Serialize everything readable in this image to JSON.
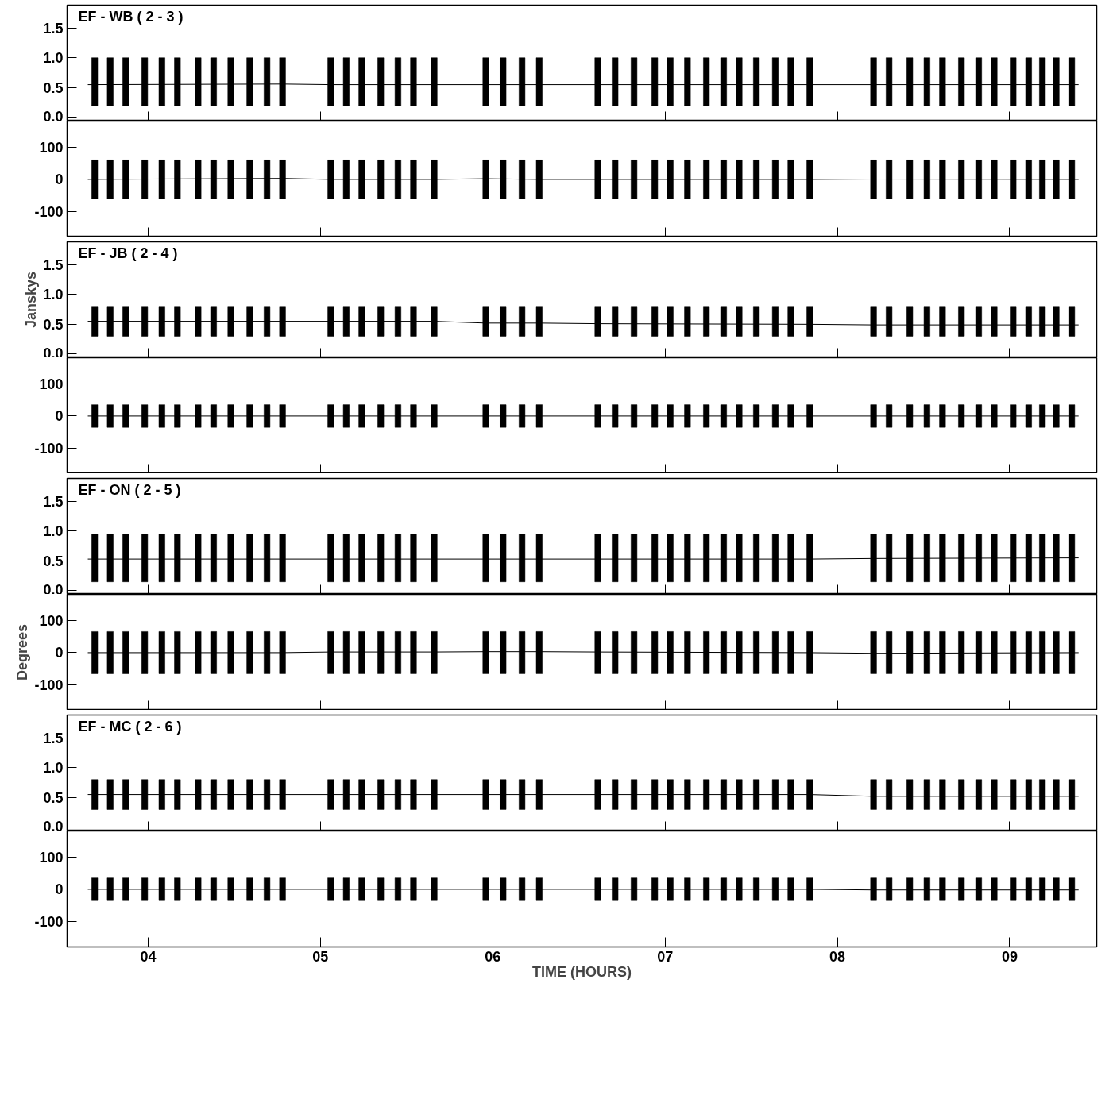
{
  "chart_data": [
    {
      "type": "bar",
      "title": "EF - WB ( 2 - 3 )",
      "x": [
        3.69,
        3.78,
        3.87,
        3.98,
        4.08,
        4.17,
        4.29,
        4.38,
        4.48,
        4.59,
        4.69,
        4.78,
        5.06,
        5.15,
        5.24,
        5.35,
        5.45,
        5.54,
        5.66,
        5.96,
        6.06,
        6.17,
        6.27,
        6.61,
        6.71,
        6.82,
        6.94,
        7.03,
        7.13,
        7.24,
        7.34,
        7.43,
        7.53,
        7.64,
        7.73,
        7.84,
        8.21,
        8.3,
        8.42,
        8.52,
        8.61,
        8.72,
        8.82,
        8.91,
        9.02,
        9.11,
        9.19,
        9.27,
        9.36
      ],
      "xlim": [
        3.53,
        9.505
      ],
      "xticks": [
        {
          "value": 4,
          "label": null
        },
        {
          "value": 5,
          "label": null
        },
        {
          "value": 6,
          "label": null
        },
        {
          "value": 7,
          "label": null
        },
        {
          "value": 8,
          "label": null
        },
        {
          "value": 9,
          "label": null
        }
      ],
      "ylim": [
        -0.06,
        1.88
      ],
      "yticks": [
        {
          "value": 0,
          "label": "0.0"
        },
        {
          "value": 0.5,
          "label": "0.5"
        },
        {
          "value": 1,
          "label": "1.0"
        },
        {
          "value": 1.5,
          "label": "1.5"
        }
      ],
      "tick_labels": "y",
      "grid": false,
      "series": [
        {
          "type": "bar",
          "color": "#000000",
          "base": [
            0.2,
            0.2,
            0.2,
            0.2,
            0.2,
            0.2,
            0.2,
            0.2,
            0.2,
            0.2,
            0.2,
            0.2,
            0.2,
            0.2,
            0.2,
            0.2,
            0.2,
            0.2,
            0.2,
            0.2,
            0.2,
            0.2,
            0.2,
            0.2,
            0.2,
            0.2,
            0.2,
            0.2,
            0.2,
            0.2,
            0.2,
            0.2,
            0.2,
            0.2,
            0.2,
            0.2,
            0.2,
            0.2,
            0.2,
            0.2,
            0.2,
            0.2,
            0.2,
            0.2,
            0.2,
            0.2,
            0.2,
            0.2,
            0.2
          ],
          "values": [
            0.8,
            0.8,
            0.8,
            0.8,
            0.8,
            0.8,
            0.8,
            0.8,
            0.8,
            0.8,
            0.8,
            0.8,
            0.8,
            0.8,
            0.8,
            0.8,
            0.8,
            0.8,
            0.8,
            0.8,
            0.8,
            0.8,
            0.8,
            0.8,
            0.8,
            0.8,
            0.8,
            0.8,
            0.8,
            0.8,
            0.8,
            0.8,
            0.8,
            0.8,
            0.8,
            0.8,
            0.8,
            0.8,
            0.8,
            0.8,
            0.8,
            0.8,
            0.8,
            0.8,
            0.8,
            0.8,
            0.8,
            0.8,
            0.8
          ]
        },
        {
          "type": "line",
          "color": "#000000",
          "x": [
            3.65,
            4.78,
            5.06,
            5.66,
            5.96,
            6.27,
            6.61,
            7.84,
            8.21,
            9.4
          ],
          "values": [
            0.55,
            0.56,
            0.55,
            0.55,
            0.55,
            0.55,
            0.55,
            0.55,
            0.55,
            0.55
          ]
        }
      ]
    },
    {
      "type": "bar",
      "x": [
        3.69,
        3.78,
        3.87,
        3.98,
        4.08,
        4.17,
        4.29,
        4.38,
        4.48,
        4.59,
        4.69,
        4.78,
        5.06,
        5.15,
        5.24,
        5.35,
        5.45,
        5.54,
        5.66,
        5.96,
        6.06,
        6.17,
        6.27,
        6.61,
        6.71,
        6.82,
        6.94,
        7.03,
        7.13,
        7.24,
        7.34,
        7.43,
        7.53,
        7.64,
        7.73,
        7.84,
        8.21,
        8.3,
        8.42,
        8.52,
        8.61,
        8.72,
        8.82,
        8.91,
        9.02,
        9.11,
        9.19,
        9.27,
        9.36
      ],
      "xlim": [
        3.53,
        9.505
      ],
      "xticks": [
        {
          "value": 4,
          "label": null
        },
        {
          "value": 5,
          "label": null
        },
        {
          "value": 6,
          "label": null
        },
        {
          "value": 7,
          "label": null
        },
        {
          "value": 8,
          "label": null
        },
        {
          "value": 9,
          "label": null
        }
      ],
      "ylim": [
        -178,
        180
      ],
      "yticks": [
        -100,
        0,
        100
      ],
      "tick_labels": "y",
      "grid": false,
      "series": [
        {
          "type": "bar",
          "color": "#000000",
          "base": [
            -60,
            -60,
            -60,
            -60,
            -60,
            -60,
            -60,
            -60,
            -60,
            -60,
            -60,
            -60,
            -60,
            -60,
            -60,
            -60,
            -60,
            -60,
            -60,
            -60,
            -60,
            -60,
            -60,
            -60,
            -60,
            -60,
            -60,
            -60,
            -60,
            -60,
            -60,
            -60,
            -60,
            -60,
            -60,
            -60,
            -60,
            -60,
            -60,
            -60,
            -60,
            -60,
            -60,
            -60,
            -60,
            -60,
            -60,
            -60,
            -60
          ],
          "values": [
            120,
            120,
            120,
            120,
            120,
            120,
            120,
            120,
            120,
            120,
            120,
            120,
            120,
            120,
            120,
            120,
            120,
            120,
            120,
            120,
            120,
            120,
            120,
            120,
            120,
            120,
            120,
            120,
            120,
            120,
            120,
            120,
            120,
            120,
            120,
            120,
            120,
            120,
            120,
            120,
            120,
            120,
            120,
            120,
            120,
            120,
            120,
            120,
            120
          ]
        },
        {
          "type": "line",
          "color": "#000000",
          "x": [
            3.65,
            4.78,
            5.06,
            5.66,
            5.96,
            6.27,
            6.61,
            7.84,
            8.21,
            9.4
          ],
          "values": [
            0,
            3,
            0,
            0,
            2,
            0,
            0,
            0,
            1,
            0
          ]
        }
      ]
    },
    {
      "type": "bar",
      "title": "EF - JB ( 2 - 4 )",
      "ylabel": "Janskys",
      "x": [
        3.69,
        3.78,
        3.87,
        3.98,
        4.08,
        4.17,
        4.29,
        4.38,
        4.48,
        4.59,
        4.69,
        4.78,
        5.06,
        5.15,
        5.24,
        5.35,
        5.45,
        5.54,
        5.66,
        5.96,
        6.06,
        6.17,
        6.27,
        6.61,
        6.71,
        6.82,
        6.94,
        7.03,
        7.13,
        7.24,
        7.34,
        7.43,
        7.53,
        7.64,
        7.73,
        7.84,
        8.21,
        8.3,
        8.42,
        8.52,
        8.61,
        8.72,
        8.82,
        8.91,
        9.02,
        9.11,
        9.19,
        9.27,
        9.36
      ],
      "xlim": [
        3.53,
        9.505
      ],
      "xticks": [
        {
          "value": 4,
          "label": null
        },
        {
          "value": 5,
          "label": null
        },
        {
          "value": 6,
          "label": null
        },
        {
          "value": 7,
          "label": null
        },
        {
          "value": 8,
          "label": null
        },
        {
          "value": 9,
          "label": null
        }
      ],
      "ylim": [
        -0.06,
        1.88
      ],
      "yticks": [
        {
          "value": 0,
          "label": "0.0"
        },
        {
          "value": 0.5,
          "label": "0.5"
        },
        {
          "value": 1,
          "label": "1.0"
        },
        {
          "value": 1.5,
          "label": "1.5"
        }
      ],
      "tick_labels": "y",
      "grid": false,
      "series": [
        {
          "type": "bar",
          "color": "#000000",
          "base": [
            0.3,
            0.3,
            0.3,
            0.3,
            0.3,
            0.3,
            0.3,
            0.3,
            0.3,
            0.3,
            0.3,
            0.3,
            0.3,
            0.3,
            0.3,
            0.3,
            0.3,
            0.3,
            0.3,
            0.3,
            0.3,
            0.3,
            0.3,
            0.3,
            0.3,
            0.3,
            0.3,
            0.3,
            0.3,
            0.3,
            0.3,
            0.3,
            0.3,
            0.3,
            0.3,
            0.3,
            0.3,
            0.3,
            0.3,
            0.3,
            0.3,
            0.3,
            0.3,
            0.3,
            0.3,
            0.3,
            0.3,
            0.3,
            0.3
          ],
          "values": [
            0.5,
            0.5,
            0.5,
            0.5,
            0.5,
            0.5,
            0.5,
            0.5,
            0.5,
            0.5,
            0.5,
            0.5,
            0.5,
            0.5,
            0.5,
            0.5,
            0.5,
            0.5,
            0.5,
            0.5,
            0.5,
            0.5,
            0.5,
            0.5,
            0.5,
            0.5,
            0.5,
            0.5,
            0.5,
            0.5,
            0.5,
            0.5,
            0.5,
            0.5,
            0.5,
            0.5,
            0.5,
            0.5,
            0.5,
            0.5,
            0.5,
            0.5,
            0.5,
            0.5,
            0.5,
            0.5,
            0.5,
            0.5,
            0.5
          ]
        },
        {
          "type": "line",
          "color": "#000000",
          "x": [
            3.65,
            4.78,
            5.06,
            5.66,
            5.96,
            6.27,
            6.61,
            7.84,
            8.21,
            9.4
          ],
          "values": [
            0.55,
            0.55,
            0.55,
            0.55,
            0.52,
            0.52,
            0.51,
            0.5,
            0.49,
            0.49
          ]
        }
      ]
    },
    {
      "type": "bar",
      "x": [
        3.69,
        3.78,
        3.87,
        3.98,
        4.08,
        4.17,
        4.29,
        4.38,
        4.48,
        4.59,
        4.69,
        4.78,
        5.06,
        5.15,
        5.24,
        5.35,
        5.45,
        5.54,
        5.66,
        5.96,
        6.06,
        6.17,
        6.27,
        6.61,
        6.71,
        6.82,
        6.94,
        7.03,
        7.13,
        7.24,
        7.34,
        7.43,
        7.53,
        7.64,
        7.73,
        7.84,
        8.21,
        8.3,
        8.42,
        8.52,
        8.61,
        8.72,
        8.82,
        8.91,
        9.02,
        9.11,
        9.19,
        9.27,
        9.36
      ],
      "xlim": [
        3.53,
        9.505
      ],
      "xticks": [
        {
          "value": 4,
          "label": null
        },
        {
          "value": 5,
          "label": null
        },
        {
          "value": 6,
          "label": null
        },
        {
          "value": 7,
          "label": null
        },
        {
          "value": 8,
          "label": null
        },
        {
          "value": 9,
          "label": null
        }
      ],
      "ylim": [
        -178,
        180
      ],
      "yticks": [
        -100,
        0,
        100
      ],
      "tick_labels": "y",
      "grid": false,
      "series": [
        {
          "type": "bar",
          "color": "#000000",
          "base": [
            -35,
            -35,
            -35,
            -35,
            -35,
            -35,
            -35,
            -35,
            -35,
            -35,
            -35,
            -35,
            -35,
            -35,
            -35,
            -35,
            -35,
            -35,
            -35,
            -35,
            -35,
            -35,
            -35,
            -35,
            -35,
            -35,
            -35,
            -35,
            -35,
            -35,
            -35,
            -35,
            -35,
            -35,
            -35,
            -35,
            -35,
            -35,
            -35,
            -35,
            -35,
            -35,
            -35,
            -35,
            -35,
            -35,
            -35,
            -35,
            -35
          ],
          "values": [
            70,
            70,
            70,
            70,
            70,
            70,
            70,
            70,
            70,
            70,
            70,
            70,
            70,
            70,
            70,
            70,
            70,
            70,
            70,
            70,
            70,
            70,
            70,
            70,
            70,
            70,
            70,
            70,
            70,
            70,
            70,
            70,
            70,
            70,
            70,
            70,
            70,
            70,
            70,
            70,
            70,
            70,
            70,
            70,
            70,
            70,
            70,
            70,
            70
          ]
        },
        {
          "type": "line",
          "color": "#000000",
          "x": [
            3.65,
            4.78,
            5.06,
            5.66,
            5.96,
            6.27,
            6.61,
            7.84,
            8.21,
            9.4
          ],
          "values": [
            0,
            0,
            0,
            0,
            0,
            0,
            0,
            0,
            0,
            0
          ]
        }
      ]
    },
    {
      "type": "bar",
      "title": "EF - ON ( 2 - 5 )",
      "x": [
        3.69,
        3.78,
        3.87,
        3.98,
        4.08,
        4.17,
        4.29,
        4.38,
        4.48,
        4.59,
        4.69,
        4.78,
        5.06,
        5.15,
        5.24,
        5.35,
        5.45,
        5.54,
        5.66,
        5.96,
        6.06,
        6.17,
        6.27,
        6.61,
        6.71,
        6.82,
        6.94,
        7.03,
        7.13,
        7.24,
        7.34,
        7.43,
        7.53,
        7.64,
        7.73,
        7.84,
        8.21,
        8.3,
        8.42,
        8.52,
        8.61,
        8.72,
        8.82,
        8.91,
        9.02,
        9.11,
        9.19,
        9.27,
        9.36
      ],
      "xlim": [
        3.53,
        9.505
      ],
      "xticks": [
        {
          "value": 4,
          "label": null
        },
        {
          "value": 5,
          "label": null
        },
        {
          "value": 6,
          "label": null
        },
        {
          "value": 7,
          "label": null
        },
        {
          "value": 8,
          "label": null
        },
        {
          "value": 9,
          "label": null
        }
      ],
      "ylim": [
        -0.06,
        1.88
      ],
      "yticks": [
        {
          "value": 0,
          "label": "0.0"
        },
        {
          "value": 0.5,
          "label": "0.5"
        },
        {
          "value": 1,
          "label": "1.0"
        },
        {
          "value": 1.5,
          "label": "1.5"
        }
      ],
      "tick_labels": "y",
      "grid": false,
      "series": [
        {
          "type": "bar",
          "color": "#000000",
          "base": [
            0.15,
            0.15,
            0.15,
            0.15,
            0.15,
            0.15,
            0.15,
            0.15,
            0.15,
            0.15,
            0.15,
            0.15,
            0.15,
            0.15,
            0.15,
            0.15,
            0.15,
            0.15,
            0.15,
            0.15,
            0.15,
            0.15,
            0.15,
            0.15,
            0.15,
            0.15,
            0.15,
            0.15,
            0.15,
            0.15,
            0.15,
            0.15,
            0.15,
            0.15,
            0.15,
            0.15,
            0.15,
            0.15,
            0.15,
            0.15,
            0.15,
            0.15,
            0.15,
            0.15,
            0.15,
            0.15,
            0.15,
            0.15,
            0.15
          ],
          "values": [
            0.8,
            0.8,
            0.8,
            0.8,
            0.8,
            0.8,
            0.8,
            0.8,
            0.8,
            0.8,
            0.8,
            0.8,
            0.8,
            0.8,
            0.8,
            0.8,
            0.8,
            0.8,
            0.8,
            0.8,
            0.8,
            0.8,
            0.8,
            0.8,
            0.8,
            0.8,
            0.8,
            0.8,
            0.8,
            0.8,
            0.8,
            0.8,
            0.8,
            0.8,
            0.8,
            0.8,
            0.8,
            0.8,
            0.8,
            0.8,
            0.8,
            0.8,
            0.8,
            0.8,
            0.8,
            0.8,
            0.8,
            0.8,
            0.8
          ]
        },
        {
          "type": "line",
          "color": "#000000",
          "x": [
            3.65,
            4.78,
            5.06,
            5.66,
            5.96,
            6.27,
            6.61,
            7.84,
            8.21,
            9.4
          ],
          "values": [
            0.53,
            0.53,
            0.53,
            0.53,
            0.53,
            0.53,
            0.53,
            0.53,
            0.54,
            0.55
          ]
        }
      ]
    },
    {
      "type": "bar",
      "ylabel": "Degrees",
      "x": [
        3.69,
        3.78,
        3.87,
        3.98,
        4.08,
        4.17,
        4.29,
        4.38,
        4.48,
        4.59,
        4.69,
        4.78,
        5.06,
        5.15,
        5.24,
        5.35,
        5.45,
        5.54,
        5.66,
        5.96,
        6.06,
        6.17,
        6.27,
        6.61,
        6.71,
        6.82,
        6.94,
        7.03,
        7.13,
        7.24,
        7.34,
        7.43,
        7.53,
        7.64,
        7.73,
        7.84,
        8.21,
        8.3,
        8.42,
        8.52,
        8.61,
        8.72,
        8.82,
        8.91,
        9.02,
        9.11,
        9.19,
        9.27,
        9.36
      ],
      "xlim": [
        3.53,
        9.505
      ],
      "xticks": [
        {
          "value": 4,
          "label": null
        },
        {
          "value": 5,
          "label": null
        },
        {
          "value": 6,
          "label": null
        },
        {
          "value": 7,
          "label": null
        },
        {
          "value": 8,
          "label": null
        },
        {
          "value": 9,
          "label": null
        }
      ],
      "ylim": [
        -178,
        180
      ],
      "yticks": [
        -100,
        0,
        100
      ],
      "tick_labels": "y",
      "grid": false,
      "series": [
        {
          "type": "bar",
          "color": "#000000",
          "base": [
            -65,
            -65,
            -65,
            -65,
            -65,
            -65,
            -65,
            -65,
            -65,
            -65,
            -65,
            -65,
            -65,
            -65,
            -65,
            -65,
            -65,
            -65,
            -65,
            -65,
            -65,
            -65,
            -65,
            -65,
            -65,
            -65,
            -65,
            -65,
            -65,
            -65,
            -65,
            -65,
            -65,
            -65,
            -65,
            -65,
            -65,
            -65,
            -65,
            -65,
            -65,
            -65,
            -65,
            -65,
            -65,
            -65,
            -65,
            -65,
            -65
          ],
          "values": [
            130,
            130,
            130,
            130,
            130,
            130,
            130,
            130,
            130,
            130,
            130,
            130,
            130,
            130,
            130,
            130,
            130,
            130,
            130,
            130,
            130,
            130,
            130,
            130,
            130,
            130,
            130,
            130,
            130,
            130,
            130,
            130,
            130,
            130,
            130,
            130,
            130,
            130,
            130,
            130,
            130,
            130,
            130,
            130,
            130,
            130,
            130,
            130,
            130
          ]
        },
        {
          "type": "line",
          "color": "#000000",
          "x": [
            3.65,
            4.78,
            5.06,
            5.66,
            5.96,
            6.27,
            6.61,
            7.84,
            8.21,
            9.4
          ],
          "values": [
            0,
            0,
            2,
            2,
            3,
            3,
            2,
            0,
            -2,
            0
          ]
        }
      ]
    },
    {
      "type": "bar",
      "title": "EF - MC ( 2 - 6 )",
      "x": [
        3.69,
        3.78,
        3.87,
        3.98,
        4.08,
        4.17,
        4.29,
        4.38,
        4.48,
        4.59,
        4.69,
        4.78,
        5.06,
        5.15,
        5.24,
        5.35,
        5.45,
        5.54,
        5.66,
        5.96,
        6.06,
        6.17,
        6.27,
        6.61,
        6.71,
        6.82,
        6.94,
        7.03,
        7.13,
        7.24,
        7.34,
        7.43,
        7.53,
        7.64,
        7.73,
        7.84,
        8.21,
        8.3,
        8.42,
        8.52,
        8.61,
        8.72,
        8.82,
        8.91,
        9.02,
        9.11,
        9.19,
        9.27,
        9.36
      ],
      "xlim": [
        3.53,
        9.505
      ],
      "xticks": [
        {
          "value": 4,
          "label": null
        },
        {
          "value": 5,
          "label": null
        },
        {
          "value": 6,
          "label": null
        },
        {
          "value": 7,
          "label": null
        },
        {
          "value": 8,
          "label": null
        },
        {
          "value": 9,
          "label": null
        }
      ],
      "ylim": [
        -0.06,
        1.88
      ],
      "yticks": [
        {
          "value": 0,
          "label": "0.0"
        },
        {
          "value": 0.5,
          "label": "0.5"
        },
        {
          "value": 1,
          "label": "1.0"
        },
        {
          "value": 1.5,
          "label": "1.5"
        }
      ],
      "tick_labels": "y",
      "grid": false,
      "series": [
        {
          "type": "bar",
          "color": "#000000",
          "base": [
            0.3,
            0.3,
            0.3,
            0.3,
            0.3,
            0.3,
            0.3,
            0.3,
            0.3,
            0.3,
            0.3,
            0.3,
            0.3,
            0.3,
            0.3,
            0.3,
            0.3,
            0.3,
            0.3,
            0.3,
            0.3,
            0.3,
            0.3,
            0.3,
            0.3,
            0.3,
            0.3,
            0.3,
            0.3,
            0.3,
            0.3,
            0.3,
            0.3,
            0.3,
            0.3,
            0.3,
            0.3,
            0.3,
            0.3,
            0.3,
            0.3,
            0.3,
            0.3,
            0.3,
            0.3,
            0.3,
            0.3,
            0.3,
            0.3
          ],
          "values": [
            0.5,
            0.5,
            0.5,
            0.5,
            0.5,
            0.5,
            0.5,
            0.5,
            0.5,
            0.5,
            0.5,
            0.5,
            0.5,
            0.5,
            0.5,
            0.5,
            0.5,
            0.5,
            0.5,
            0.5,
            0.5,
            0.5,
            0.5,
            0.5,
            0.5,
            0.5,
            0.5,
            0.5,
            0.5,
            0.5,
            0.5,
            0.5,
            0.5,
            0.5,
            0.5,
            0.5,
            0.5,
            0.5,
            0.5,
            0.5,
            0.5,
            0.5,
            0.5,
            0.5,
            0.5,
            0.5,
            0.5,
            0.5,
            0.5
          ]
        },
        {
          "type": "line",
          "color": "#000000",
          "x": [
            3.65,
            4.78,
            5.06,
            5.66,
            5.96,
            6.27,
            6.61,
            7.84,
            8.21,
            9.4
          ],
          "values": [
            0.55,
            0.55,
            0.55,
            0.55,
            0.55,
            0.55,
            0.55,
            0.55,
            0.52,
            0.52
          ]
        }
      ]
    },
    {
      "type": "bar",
      "xlabel": "TIME (HOURS)",
      "x": [
        3.69,
        3.78,
        3.87,
        3.98,
        4.08,
        4.17,
        4.29,
        4.38,
        4.48,
        4.59,
        4.69,
        4.78,
        5.06,
        5.15,
        5.24,
        5.35,
        5.45,
        5.54,
        5.66,
        5.96,
        6.06,
        6.17,
        6.27,
        6.61,
        6.71,
        6.82,
        6.94,
        7.03,
        7.13,
        7.24,
        7.34,
        7.43,
        7.53,
        7.64,
        7.73,
        7.84,
        8.21,
        8.3,
        8.42,
        8.52,
        8.61,
        8.72,
        8.82,
        8.91,
        9.02,
        9.11,
        9.19,
        9.27,
        9.36
      ],
      "xlim": [
        3.53,
        9.505
      ],
      "xticks": [
        {
          "value": 4,
          "label": "04"
        },
        {
          "value": 5,
          "label": "05"
        },
        {
          "value": 6,
          "label": "06"
        },
        {
          "value": 7,
          "label": "07"
        },
        {
          "value": 8,
          "label": "08"
        },
        {
          "value": 9,
          "label": "09"
        }
      ],
      "ylim": [
        -178,
        180
      ],
      "yticks": [
        -100,
        0,
        100
      ],
      "grid": false,
      "series": [
        {
          "type": "bar",
          "color": "#000000",
          "base": [
            -35,
            -35,
            -35,
            -35,
            -35,
            -35,
            -35,
            -35,
            -35,
            -35,
            -35,
            -35,
            -35,
            -35,
            -35,
            -35,
            -35,
            -35,
            -35,
            -35,
            -35,
            -35,
            -35,
            -35,
            -35,
            -35,
            -35,
            -35,
            -35,
            -35,
            -35,
            -35,
            -35,
            -35,
            -35,
            -35,
            -35,
            -35,
            -35,
            -35,
            -35,
            -35,
            -35,
            -35,
            -35,
            -35,
            -35,
            -35,
            -35
          ],
          "values": [
            70,
            70,
            70,
            70,
            70,
            70,
            70,
            70,
            70,
            70,
            70,
            70,
            70,
            70,
            70,
            70,
            70,
            70,
            70,
            70,
            70,
            70,
            70,
            70,
            70,
            70,
            70,
            70,
            70,
            70,
            70,
            70,
            70,
            70,
            70,
            70,
            70,
            70,
            70,
            70,
            70,
            70,
            70,
            70,
            70,
            70,
            70,
            70,
            70
          ]
        },
        {
          "type": "line",
          "color": "#000000",
          "x": [
            3.65,
            4.78,
            5.06,
            5.66,
            5.96,
            6.27,
            6.61,
            7.84,
            8.21,
            9.4
          ],
          "values": [
            0,
            0,
            0,
            0,
            0,
            0,
            0,
            0,
            -2,
            -2
          ]
        }
      ]
    }
  ]
}
